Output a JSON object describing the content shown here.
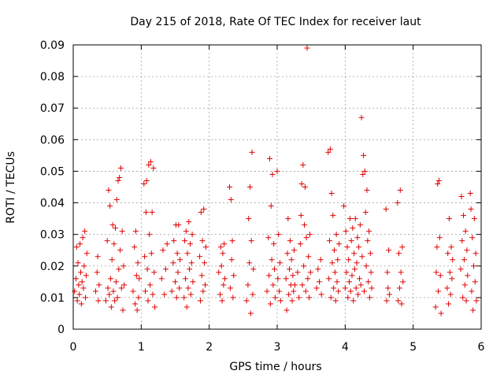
{
  "chart_data": {
    "type": "scatter",
    "title": "Day 215 of 2018, Rate Of TEC Index for receiver laut",
    "xlabel": "GPS time / hours",
    "ylabel": "ROTI / TECUs",
    "xlim": [
      0,
      6
    ],
    "ylim": [
      0,
      0.09
    ],
    "grid": true,
    "marker": "+",
    "color": "#e00000",
    "x_ticks": [
      "0",
      "1",
      "2",
      "3",
      "4",
      "5",
      "6"
    ],
    "y_ticks": [
      "0",
      "0.01",
      "0.02",
      "0.03",
      "0.04",
      "0.05",
      "0.06",
      "0.07",
      "0.08",
      "0.09"
    ],
    "series": [
      {
        "name": "ROTI",
        "points": [
          [
            0.02,
            0.012
          ],
          [
            0.04,
            0.016
          ],
          [
            0.05,
            0.026
          ],
          [
            0.06,
            0.009
          ],
          [
            0.07,
            0.021
          ],
          [
            0.08,
            0.014
          ],
          [
            0.09,
            0.011
          ],
          [
            0.1,
            0.027
          ],
          [
            0.11,
            0.018
          ],
          [
            0.12,
            0.008
          ],
          [
            0.13,
            0.015
          ],
          [
            0.14,
            0.029
          ],
          [
            0.15,
            0.013
          ],
          [
            0.16,
            0.02
          ],
          [
            0.17,
            0.031
          ],
          [
            0.18,
            0.01
          ],
          [
            0.19,
            0.017
          ],
          [
            0.2,
            0.024
          ],
          [
            0.33,
            0.012
          ],
          [
            0.35,
            0.018
          ],
          [
            0.36,
            0.023
          ],
          [
            0.37,
            0.009
          ],
          [
            0.38,
            0.014
          ],
          [
            0.48,
            0.009
          ],
          [
            0.5,
            0.028
          ],
          [
            0.51,
            0.013
          ],
          [
            0.52,
            0.044
          ],
          [
            0.53,
            0.011
          ],
          [
            0.54,
            0.039
          ],
          [
            0.55,
            0.016
          ],
          [
            0.56,
            0.007
          ],
          [
            0.57,
            0.022
          ],
          [
            0.58,
            0.033
          ],
          [
            0.59,
            0.012
          ],
          [
            0.6,
            0.027
          ],
          [
            0.61,
            0.009
          ],
          [
            0.62,
            0.032
          ],
          [
            0.63,
            0.015
          ],
          [
            0.64,
            0.041
          ],
          [
            0.65,
            0.01
          ],
          [
            0.66,
            0.047
          ],
          [
            0.67,
            0.019
          ],
          [
            0.68,
            0.048
          ],
          [
            0.69,
            0.025
          ],
          [
            0.7,
            0.051
          ],
          [
            0.71,
            0.013
          ],
          [
            0.72,
            0.031
          ],
          [
            0.73,
            0.006
          ],
          [
            0.74,
            0.02
          ],
          [
            0.75,
            0.014
          ],
          [
            0.88,
            0.012
          ],
          [
            0.9,
            0.026
          ],
          [
            0.91,
            0.008
          ],
          [
            0.92,
            0.031
          ],
          [
            0.93,
            0.017
          ],
          [
            0.94,
            0.006
          ],
          [
            0.95,
            0.021
          ],
          [
            0.96,
            0.01
          ],
          [
            0.97,
            0.016
          ],
          [
            1.04,
            0.046
          ],
          [
            1.05,
            0.023
          ],
          [
            1.06,
            0.012
          ],
          [
            1.07,
            0.037
          ],
          [
            1.08,
            0.047
          ],
          [
            1.09,
            0.019
          ],
          [
            1.1,
            0.009
          ],
          [
            1.11,
            0.052
          ],
          [
            1.12,
            0.03
          ],
          [
            1.13,
            0.014
          ],
          [
            1.14,
            0.053
          ],
          [
            1.15,
            0.024
          ],
          [
            1.16,
            0.037
          ],
          [
            1.17,
            0.011
          ],
          [
            1.18,
            0.051
          ],
          [
            1.19,
            0.018
          ],
          [
            1.2,
            0.007
          ],
          [
            1.3,
            0.016
          ],
          [
            1.32,
            0.025
          ],
          [
            1.34,
            0.011
          ],
          [
            1.36,
            0.019
          ],
          [
            1.38,
            0.027
          ],
          [
            1.45,
            0.012
          ],
          [
            1.47,
            0.021
          ],
          [
            1.48,
            0.028
          ],
          [
            1.5,
            0.015
          ],
          [
            1.51,
            0.033
          ],
          [
            1.52,
            0.01
          ],
          [
            1.53,
            0.024
          ],
          [
            1.54,
            0.018
          ],
          [
            1.55,
            0.033
          ],
          [
            1.56,
            0.013
          ],
          [
            1.57,
            0.022
          ],
          [
            1.63,
            0.01
          ],
          [
            1.64,
            0.028
          ],
          [
            1.65,
            0.016
          ],
          [
            1.66,
            0.031
          ],
          [
            1.67,
            0.007
          ],
          [
            1.68,
            0.024
          ],
          [
            1.69,
            0.013
          ],
          [
            1.7,
            0.034
          ],
          [
            1.71,
            0.019
          ],
          [
            1.72,
            0.027
          ],
          [
            1.73,
            0.011
          ],
          [
            1.74,
            0.021
          ],
          [
            1.75,
            0.03
          ],
          [
            1.76,
            0.015
          ],
          [
            1.86,
            0.023
          ],
          [
            1.87,
            0.009
          ],
          [
            1.88,
            0.037
          ],
          [
            1.89,
            0.017
          ],
          [
            1.9,
            0.028
          ],
          [
            1.91,
            0.012
          ],
          [
            1.92,
            0.038
          ],
          [
            1.93,
            0.021
          ],
          [
            1.94,
            0.014
          ],
          [
            1.95,
            0.026
          ],
          [
            2.14,
            0.018
          ],
          [
            2.16,
            0.011
          ],
          [
            2.17,
            0.026
          ],
          [
            2.18,
            0.02
          ],
          [
            2.19,
            0.009
          ],
          [
            2.2,
            0.024
          ],
          [
            2.21,
            0.014
          ],
          [
            2.22,
            0.027
          ],
          [
            2.23,
            0.016
          ],
          [
            2.3,
            0.045
          ],
          [
            2.31,
            0.013
          ],
          [
            2.32,
            0.041
          ],
          [
            2.33,
            0.022
          ],
          [
            2.34,
            0.028
          ],
          [
            2.35,
            0.01
          ],
          [
            2.36,
            0.017
          ],
          [
            2.55,
            0.009
          ],
          [
            2.57,
            0.014
          ],
          [
            2.58,
            0.035
          ],
          [
            2.59,
            0.021
          ],
          [
            2.6,
            0.045
          ],
          [
            2.61,
            0.005
          ],
          [
            2.62,
            0.028
          ],
          [
            2.63,
            0.056
          ],
          [
            2.64,
            0.011
          ],
          [
            2.65,
            0.019
          ],
          [
            2.85,
            0.012
          ],
          [
            2.87,
            0.029
          ],
          [
            2.88,
            0.017
          ],
          [
            2.89,
            0.054
          ],
          [
            2.9,
            0.008
          ],
          [
            2.91,
            0.039
          ],
          [
            2.92,
            0.022
          ],
          [
            2.93,
            0.049
          ],
          [
            2.94,
            0.014
          ],
          [
            2.95,
            0.027
          ],
          [
            2.96,
            0.019
          ],
          [
            2.97,
            0.01
          ],
          [
            3.0,
            0.05
          ],
          [
            3.01,
            0.016
          ],
          [
            3.02,
            0.03
          ],
          [
            3.03,
            0.012
          ],
          [
            3.04,
            0.021
          ],
          [
            3.05,
            0.009
          ],
          [
            3.13,
            0.016
          ],
          [
            3.14,
            0.006
          ],
          [
            3.15,
            0.024
          ],
          [
            3.16,
            0.035
          ],
          [
            3.17,
            0.011
          ],
          [
            3.18,
            0.019
          ],
          [
            3.19,
            0.028
          ],
          [
            3.2,
            0.014
          ],
          [
            3.21,
            0.022
          ],
          [
            3.22,
            0.009
          ],
          [
            3.23,
            0.017
          ],
          [
            3.24,
            0.012
          ],
          [
            3.25,
            0.025
          ],
          [
            3.26,
            0.014
          ],
          [
            3.3,
            0.018
          ],
          [
            3.32,
            0.01
          ],
          [
            3.34,
            0.027
          ],
          [
            3.35,
            0.036
          ],
          [
            3.36,
            0.046
          ],
          [
            3.37,
            0.014
          ],
          [
            3.38,
            0.052
          ],
          [
            3.39,
            0.02
          ],
          [
            3.4,
            0.033
          ],
          [
            3.41,
            0.045
          ],
          [
            3.42,
            0.012
          ],
          [
            3.43,
            0.029
          ],
          [
            3.44,
            0.089
          ],
          [
            3.45,
            0.016
          ],
          [
            3.46,
            0.023
          ],
          [
            3.47,
            0.01
          ],
          [
            3.48,
            0.03
          ],
          [
            3.49,
            0.018
          ],
          [
            3.58,
            0.013
          ],
          [
            3.6,
            0.019
          ],
          [
            3.62,
            0.015
          ],
          [
            3.64,
            0.022
          ],
          [
            3.65,
            0.011
          ],
          [
            3.75,
            0.056
          ],
          [
            3.76,
            0.016
          ],
          [
            3.77,
            0.028
          ],
          [
            3.78,
            0.057
          ],
          [
            3.79,
            0.01
          ],
          [
            3.8,
            0.043
          ],
          [
            3.81,
            0.021
          ],
          [
            3.82,
            0.036
          ],
          [
            3.83,
            0.013
          ],
          [
            3.84,
            0.025
          ],
          [
            3.85,
            0.018
          ],
          [
            3.86,
            0.009
          ],
          [
            3.87,
            0.03
          ],
          [
            3.88,
            0.015
          ],
          [
            3.89,
            0.022
          ],
          [
            3.9,
            0.012
          ],
          [
            3.91,
            0.027
          ],
          [
            3.98,
            0.039
          ],
          [
            4.0,
            0.013
          ],
          [
            4.01,
            0.031
          ],
          [
            4.02,
            0.018
          ],
          [
            4.03,
            0.026
          ],
          [
            4.04,
            0.01
          ],
          [
            4.05,
            0.022
          ],
          [
            4.06,
            0.015
          ],
          [
            4.07,
            0.035
          ],
          [
            4.08,
            0.012
          ],
          [
            4.09,
            0.028
          ],
          [
            4.1,
            0.017
          ],
          [
            4.11,
            0.032
          ],
          [
            4.12,
            0.009
          ],
          [
            4.13,
            0.024
          ],
          [
            4.14,
            0.019
          ],
          [
            4.15,
            0.035
          ],
          [
            4.16,
            0.013
          ],
          [
            4.17,
            0.021
          ],
          [
            4.18,
            0.029
          ],
          [
            4.19,
            0.011
          ],
          [
            4.2,
            0.026
          ],
          [
            4.21,
            0.016
          ],
          [
            4.22,
            0.033
          ],
          [
            4.23,
            0.014
          ],
          [
            4.24,
            0.067
          ],
          [
            4.25,
            0.023
          ],
          [
            4.26,
            0.049
          ],
          [
            4.27,
            0.055
          ],
          [
            4.28,
            0.012
          ],
          [
            4.29,
            0.05
          ],
          [
            4.3,
            0.037
          ],
          [
            4.31,
            0.02
          ],
          [
            4.32,
            0.044
          ],
          [
            4.33,
            0.028
          ],
          [
            4.34,
            0.015
          ],
          [
            4.35,
            0.031
          ],
          [
            4.36,
            0.01
          ],
          [
            4.37,
            0.024
          ],
          [
            4.38,
            0.018
          ],
          [
            4.39,
            0.013
          ],
          [
            4.6,
            0.038
          ],
          [
            4.61,
            0.009
          ],
          [
            4.62,
            0.018
          ],
          [
            4.63,
            0.013
          ],
          [
            4.64,
            0.025
          ],
          [
            4.65,
            0.011
          ],
          [
            4.77,
            0.04
          ],
          [
            4.78,
            0.009
          ],
          [
            4.79,
            0.024
          ],
          [
            4.8,
            0.013
          ],
          [
            4.81,
            0.044
          ],
          [
            4.82,
            0.018
          ],
          [
            4.83,
            0.008
          ],
          [
            4.84,
            0.026
          ],
          [
            4.85,
            0.015
          ],
          [
            5.33,
            0.007
          ],
          [
            5.34,
            0.018
          ],
          [
            5.35,
            0.026
          ],
          [
            5.36,
            0.046
          ],
          [
            5.37,
            0.012
          ],
          [
            5.38,
            0.047
          ],
          [
            5.39,
            0.029
          ],
          [
            5.4,
            0.017
          ],
          [
            5.41,
            0.005
          ],
          [
            5.5,
            0.013
          ],
          [
            5.51,
            0.024
          ],
          [
            5.52,
            0.008
          ],
          [
            5.53,
            0.035
          ],
          [
            5.54,
            0.018
          ],
          [
            5.55,
            0.011
          ],
          [
            5.56,
            0.026
          ],
          [
            5.57,
            0.016
          ],
          [
            5.58,
            0.022
          ],
          [
            5.7,
            0.019
          ],
          [
            5.71,
            0.042
          ],
          [
            5.72,
            0.028
          ],
          [
            5.73,
            0.01
          ],
          [
            5.74,
            0.036
          ],
          [
            5.75,
            0.022
          ],
          [
            5.76,
            0.014
          ],
          [
            5.77,
            0.031
          ],
          [
            5.78,
            0.009
          ],
          [
            5.79,
            0.025
          ],
          [
            5.8,
            0.017
          ],
          [
            5.84,
            0.043
          ],
          [
            5.85,
            0.038
          ],
          [
            5.86,
            0.012
          ],
          [
            5.87,
            0.029
          ],
          [
            5.88,
            0.006
          ],
          [
            5.89,
            0.02
          ],
          [
            5.9,
            0.035
          ],
          [
            5.91,
            0.015
          ],
          [
            5.92,
            0.024
          ],
          [
            5.93,
            0.009
          ]
        ]
      }
    ]
  }
}
